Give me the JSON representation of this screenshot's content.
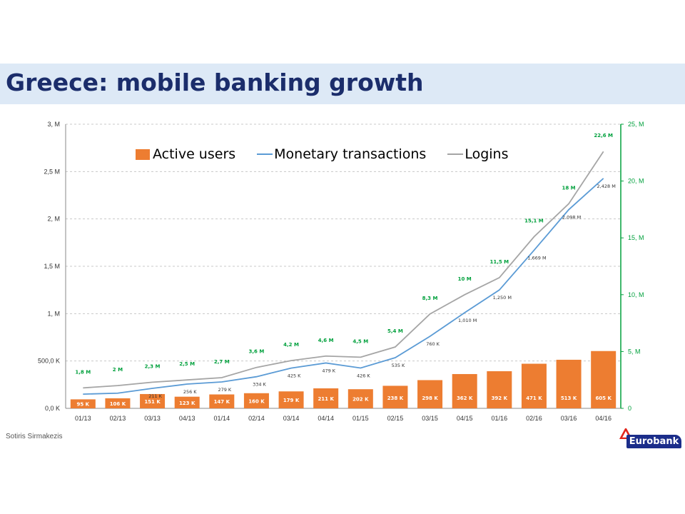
{
  "title": "Greece: mobile banking growth",
  "author": "Sotiris Sirmakezis",
  "logo_text": "Eurobank",
  "colors": {
    "bars": "#ed7d31",
    "monetary": "#5b9bd5",
    "logins": "#a5a5a5",
    "right_axis": "#00a03c",
    "title": "#1b2d6b"
  },
  "chart_data": {
    "type": "bar",
    "categories": [
      "01/13",
      "02/13",
      "03/13",
      "04/13",
      "01/14",
      "02/14",
      "03/14",
      "04/14",
      "01/15",
      "02/15",
      "03/15",
      "04/15",
      "01/16",
      "02/16",
      "03/16",
      "04/16"
    ],
    "left_axis": {
      "ticks": [
        "0,0 K",
        "500,0 K",
        "1, M",
        "1,5 M",
        "2, M",
        "2,5 M",
        "3, M"
      ],
      "range": [
        0,
        3000000
      ]
    },
    "right_axis": {
      "ticks": [
        "0",
        "5, M",
        "10, M",
        "15, M",
        "20, M",
        "25, M"
      ],
      "range": [
        0,
        25000000
      ]
    },
    "legend": [
      "Active users",
      "Monetary transactions",
      "Logins"
    ],
    "series": [
      {
        "name": "Active users",
        "kind": "bar",
        "axis": "left",
        "values": [
          95000,
          106000,
          151000,
          123000,
          147000,
          160000,
          179000,
          211000,
          202000,
          238000,
          298000,
          362000,
          392000,
          471000,
          513000,
          605000
        ],
        "labels": [
          "95 K",
          "106 K",
          "151 K",
          "123 K",
          "147 K",
          "160 K",
          "179 K",
          "211 K",
          "202 K",
          "238 K",
          "298 K",
          "362 K",
          "392 K",
          "471 K",
          "513 K",
          "605 K"
        ]
      },
      {
        "name": "Monetary transactions",
        "kind": "line",
        "axis": "left",
        "values": [
          150000,
          160000,
          211000,
          256000,
          279000,
          334000,
          425000,
          479000,
          426000,
          535000,
          760000,
          1010000,
          1250000,
          1669000,
          2098000,
          2428000
        ],
        "labels": [
          "",
          "",
          "211 K",
          "256 K",
          "279 K",
          "334 K",
          "425 K",
          "479 K",
          "426 K",
          "535 K",
          "760 K",
          "1,010 M",
          "1,250 M",
          "1,669 M",
          "2,098 M",
          "2,428 M"
        ]
      },
      {
        "name": "Logins",
        "kind": "line",
        "axis": "right",
        "values": [
          1800000,
          2000000,
          2300000,
          2500000,
          2700000,
          3600000,
          4200000,
          4600000,
          4500000,
          5400000,
          8300000,
          10000000,
          11500000,
          15100000,
          18000000,
          22600000
        ],
        "labels": [
          "1,8 M",
          "2 M",
          "2,3 M",
          "2,5 M",
          "2,7 M",
          "3,6 M",
          "4,2 M",
          "4,6 M",
          "4,5 M",
          "5,4 M",
          "8,3 M",
          "10 M",
          "11,5 M",
          "15,1 M",
          "18 M",
          "22,6 M"
        ]
      }
    ]
  }
}
